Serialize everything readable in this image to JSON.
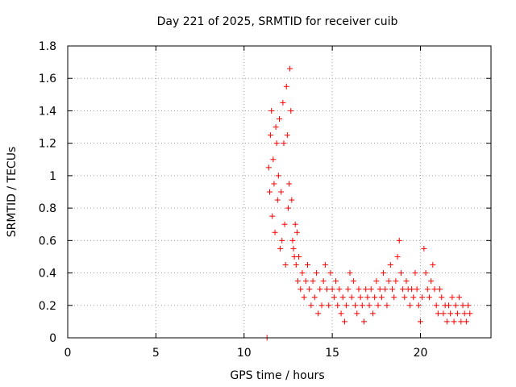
{
  "chart_data": {
    "type": "scatter",
    "title": "Day 221 of 2025, SRMTID for receiver cuib",
    "xlabel": "GPS time / hours",
    "ylabel": "SRMTID / TECUs",
    "xlim": [
      0,
      24
    ],
    "ylim": [
      0,
      1.8
    ],
    "grid": true,
    "marker": "+",
    "color": "#ff0000",
    "x_ticks": [
      "0",
      "5",
      "10",
      "15",
      "20"
    ],
    "y_ticks": [
      "0",
      "0.2",
      "0.4",
      "0.6",
      "0.8",
      "1",
      "1.2",
      "1.4",
      "1.6",
      "1.8"
    ],
    "series": [
      {
        "name": "SRMTID",
        "points": [
          [
            11.3,
            0.0
          ],
          [
            11.4,
            1.05
          ],
          [
            11.45,
            0.9
          ],
          [
            11.5,
            1.25
          ],
          [
            11.55,
            1.4
          ],
          [
            11.6,
            0.75
          ],
          [
            11.65,
            1.1
          ],
          [
            11.7,
            0.95
          ],
          [
            11.75,
            0.65
          ],
          [
            11.8,
            1.3
          ],
          [
            11.85,
            1.2
          ],
          [
            11.9,
            0.85
          ],
          [
            11.95,
            1.0
          ],
          [
            12.0,
            1.35
          ],
          [
            12.05,
            0.55
          ],
          [
            12.1,
            0.9
          ],
          [
            12.15,
            0.6
          ],
          [
            12.2,
            1.45
          ],
          [
            12.25,
            1.2
          ],
          [
            12.3,
            0.7
          ],
          [
            12.35,
            0.45
          ],
          [
            12.4,
            1.55
          ],
          [
            12.45,
            1.25
          ],
          [
            12.5,
            0.8
          ],
          [
            12.55,
            0.95
          ],
          [
            12.6,
            1.66
          ],
          [
            12.65,
            1.4
          ],
          [
            12.7,
            0.85
          ],
          [
            12.75,
            0.6
          ],
          [
            12.8,
            0.55
          ],
          [
            12.85,
            0.5
          ],
          [
            12.9,
            0.7
          ],
          [
            12.95,
            0.45
          ],
          [
            13.0,
            0.65
          ],
          [
            13.05,
            0.35
          ],
          [
            13.1,
            0.5
          ],
          [
            13.2,
            0.3
          ],
          [
            13.3,
            0.4
          ],
          [
            13.4,
            0.25
          ],
          [
            13.5,
            0.35
          ],
          [
            13.6,
            0.45
          ],
          [
            13.7,
            0.3
          ],
          [
            13.8,
            0.2
          ],
          [
            13.9,
            0.35
          ],
          [
            14.0,
            0.25
          ],
          [
            14.1,
            0.4
          ],
          [
            14.2,
            0.15
          ],
          [
            14.3,
            0.3
          ],
          [
            14.4,
            0.2
          ],
          [
            14.5,
            0.35
          ],
          [
            14.6,
            0.45
          ],
          [
            14.7,
            0.3
          ],
          [
            14.8,
            0.2
          ],
          [
            14.9,
            0.4
          ],
          [
            15.0,
            0.3
          ],
          [
            15.1,
            0.25
          ],
          [
            15.2,
            0.35
          ],
          [
            15.3,
            0.2
          ],
          [
            15.4,
            0.3
          ],
          [
            15.5,
            0.15
          ],
          [
            15.6,
            0.25
          ],
          [
            15.7,
            0.1
          ],
          [
            15.8,
            0.2
          ],
          [
            15.9,
            0.3
          ],
          [
            16.0,
            0.4
          ],
          [
            16.1,
            0.25
          ],
          [
            16.2,
            0.35
          ],
          [
            16.3,
            0.2
          ],
          [
            16.4,
            0.15
          ],
          [
            16.5,
            0.3
          ],
          [
            16.6,
            0.25
          ],
          [
            16.7,
            0.2
          ],
          [
            16.8,
            0.1
          ],
          [
            16.9,
            0.3
          ],
          [
            17.0,
            0.25
          ],
          [
            17.1,
            0.2
          ],
          [
            17.2,
            0.3
          ],
          [
            17.3,
            0.15
          ],
          [
            17.4,
            0.25
          ],
          [
            17.5,
            0.35
          ],
          [
            17.6,
            0.2
          ],
          [
            17.7,
            0.3
          ],
          [
            17.8,
            0.25
          ],
          [
            17.9,
            0.4
          ],
          [
            18.0,
            0.3
          ],
          [
            18.1,
            0.2
          ],
          [
            18.2,
            0.35
          ],
          [
            18.3,
            0.45
          ],
          [
            18.4,
            0.3
          ],
          [
            18.5,
            0.25
          ],
          [
            18.6,
            0.35
          ],
          [
            18.7,
            0.5
          ],
          [
            18.8,
            0.6
          ],
          [
            18.9,
            0.4
          ],
          [
            19.0,
            0.3
          ],
          [
            19.1,
            0.25
          ],
          [
            19.2,
            0.35
          ],
          [
            19.3,
            0.3
          ],
          [
            19.4,
            0.2
          ],
          [
            19.5,
            0.3
          ],
          [
            19.6,
            0.25
          ],
          [
            19.7,
            0.4
          ],
          [
            19.8,
            0.3
          ],
          [
            19.9,
            0.2
          ],
          [
            20.0,
            0.1
          ],
          [
            20.1,
            0.25
          ],
          [
            20.2,
            0.55
          ],
          [
            20.3,
            0.4
          ],
          [
            20.4,
            0.3
          ],
          [
            20.5,
            0.25
          ],
          [
            20.6,
            0.35
          ],
          [
            20.7,
            0.45
          ],
          [
            20.8,
            0.3
          ],
          [
            20.9,
            0.2
          ],
          [
            21.0,
            0.15
          ],
          [
            21.1,
            0.3
          ],
          [
            21.2,
            0.25
          ],
          [
            21.3,
            0.15
          ],
          [
            21.4,
            0.2
          ],
          [
            21.5,
            0.1
          ],
          [
            21.6,
            0.2
          ],
          [
            21.7,
            0.15
          ],
          [
            21.8,
            0.25
          ],
          [
            21.9,
            0.1
          ],
          [
            22.0,
            0.2
          ],
          [
            22.1,
            0.15
          ],
          [
            22.2,
            0.25
          ],
          [
            22.3,
            0.1
          ],
          [
            22.4,
            0.2
          ],
          [
            22.5,
            0.15
          ],
          [
            22.6,
            0.1
          ],
          [
            22.7,
            0.2
          ],
          [
            22.8,
            0.15
          ]
        ]
      }
    ]
  }
}
